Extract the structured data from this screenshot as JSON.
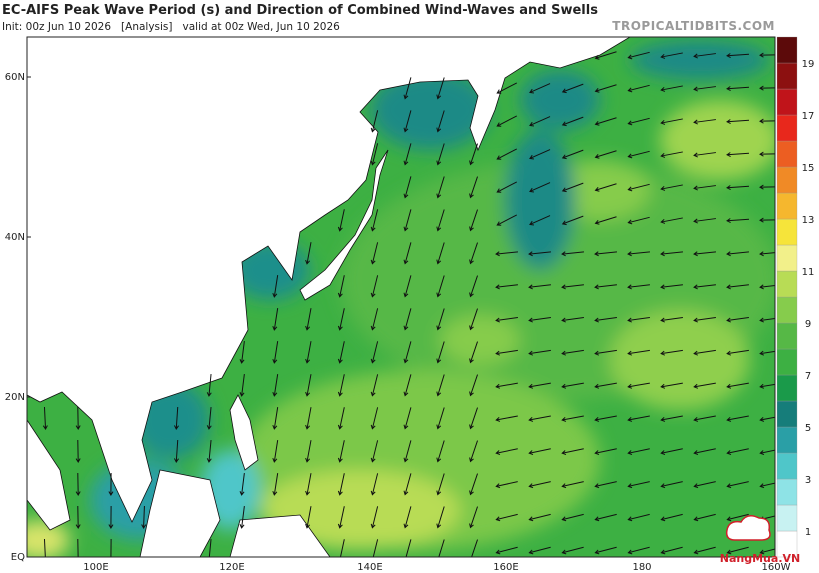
{
  "header": {
    "title": "EC-AIFS Peak Wave Period (s) and Direction of Combined Wind-Waves and Swells",
    "subtitle": "Init: 00z Jun 10 2026   [Analysis]   valid at 00z Wed, Jun 10 2026",
    "source": "TROPICALTIDBITS.COM"
  },
  "map": {
    "lat_labels": [
      "60N",
      "40N",
      "20N",
      "EQ"
    ],
    "lon_labels": [
      "100E",
      "120E",
      "140E",
      "160E",
      "180",
      "160W"
    ]
  },
  "colorbar": {
    "labels": [
      1,
      3,
      5,
      7,
      9,
      11,
      13,
      15,
      17,
      19
    ]
  },
  "logo": "NangMua.VN"
}
